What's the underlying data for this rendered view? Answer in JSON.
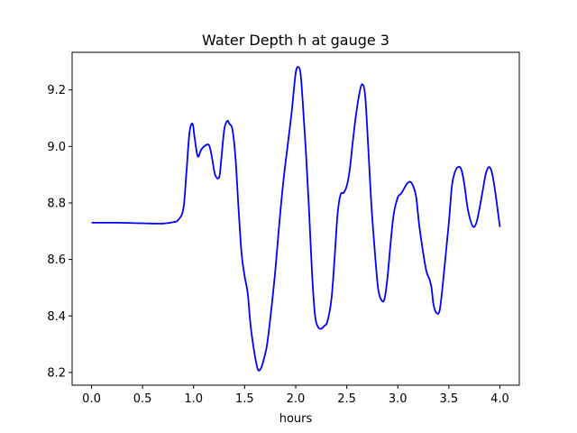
{
  "chart_data": {
    "type": "line",
    "title": "Water Depth h at gauge 3",
    "xlabel": "hours",
    "ylabel": "",
    "xlim": [
      -0.19,
      4.19
    ],
    "ylim": [
      8.155,
      9.333
    ],
    "xticks": [
      0.0,
      0.5,
      1.0,
      1.5,
      2.0,
      2.5,
      3.0,
      3.5,
      4.0
    ],
    "xtick_labels": [
      "0.0",
      "0.5",
      "1.0",
      "1.5",
      "2.0",
      "2.5",
      "3.0",
      "3.5",
      "4.0"
    ],
    "yticks": [
      8.2,
      8.4,
      8.6,
      8.8,
      9.0,
      9.2
    ],
    "ytick_labels": [
      "8.2",
      "8.4",
      "8.6",
      "8.8",
      "9.0",
      "9.2"
    ],
    "grid": false,
    "series": [
      {
        "color": "#0000ff",
        "x": [
          0.0,
          0.25,
          0.5,
          0.7,
          0.8,
          0.85,
          0.9,
          0.93,
          0.96,
          0.99,
          1.01,
          1.04,
          1.07,
          1.1,
          1.15,
          1.18,
          1.21,
          1.25,
          1.27,
          1.3,
          1.33,
          1.35,
          1.38,
          1.41,
          1.44,
          1.47,
          1.5,
          1.53,
          1.56,
          1.6,
          1.63,
          1.66,
          1.69,
          1.72,
          1.76,
          1.8,
          1.84,
          1.88,
          1.92,
          1.96,
          2.0,
          2.03,
          2.05,
          2.07,
          2.1,
          2.13,
          2.16,
          2.19,
          2.22,
          2.25,
          2.28,
          2.31,
          2.35,
          2.38,
          2.41,
          2.44,
          2.47,
          2.5,
          2.53,
          2.56,
          2.59,
          2.62,
          2.65,
          2.68,
          2.71,
          2.74,
          2.77,
          2.79,
          2.81,
          2.84,
          2.87,
          2.9,
          2.93,
          2.96,
          3.0,
          3.03,
          3.06,
          3.09,
          3.12,
          3.15,
          3.18,
          3.21,
          3.25,
          3.28,
          3.31,
          3.33,
          3.35,
          3.38,
          3.41,
          3.44,
          3.47,
          3.5,
          3.53,
          3.56,
          3.59,
          3.62,
          3.65,
          3.68,
          3.71,
          3.74,
          3.77,
          3.8,
          3.83,
          3.86,
          3.89,
          3.92,
          3.95,
          3.98,
          4.0
        ],
        "y": [
          8.73,
          8.73,
          8.728,
          8.727,
          8.732,
          8.74,
          8.78,
          8.91,
          9.05,
          9.08,
          9.03,
          8.965,
          8.985,
          8.999,
          9.005,
          8.96,
          8.9,
          8.89,
          8.95,
          9.06,
          9.09,
          9.08,
          9.06,
          8.96,
          8.78,
          8.62,
          8.54,
          8.48,
          8.36,
          8.26,
          8.21,
          8.215,
          8.25,
          8.3,
          8.42,
          8.56,
          8.73,
          8.88,
          9.0,
          9.12,
          9.26,
          9.28,
          9.25,
          9.15,
          8.98,
          8.78,
          8.55,
          8.4,
          8.36,
          8.355,
          8.365,
          8.38,
          8.46,
          8.6,
          8.76,
          8.83,
          8.836,
          8.86,
          8.92,
          9.02,
          9.11,
          9.18,
          9.22,
          9.18,
          9.0,
          8.8,
          8.65,
          8.56,
          8.49,
          8.456,
          8.46,
          8.54,
          8.66,
          8.76,
          8.82,
          8.832,
          8.85,
          8.868,
          8.875,
          8.86,
          8.82,
          8.72,
          8.62,
          8.558,
          8.53,
          8.5,
          8.44,
          8.41,
          8.42,
          8.51,
          8.62,
          8.73,
          8.86,
          8.91,
          8.927,
          8.92,
          8.87,
          8.79,
          8.74,
          8.715,
          8.73,
          8.78,
          8.84,
          8.9,
          8.927,
          8.91,
          8.85,
          8.77,
          8.715
        ]
      }
    ]
  }
}
